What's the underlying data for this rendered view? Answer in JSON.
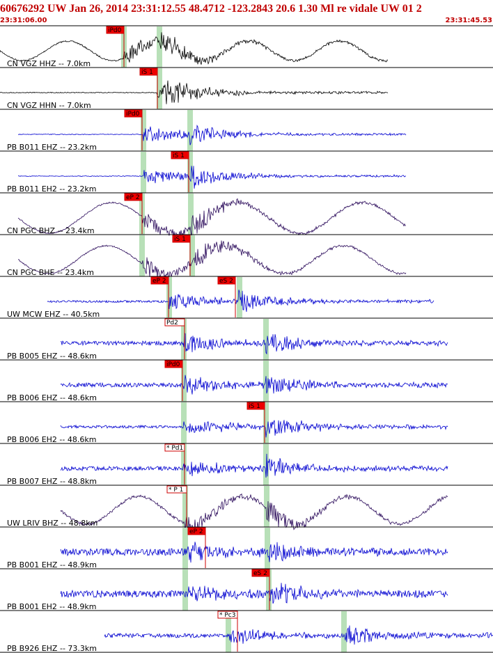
{
  "header": {
    "title": "60676292 UW Jan 26, 2014 23:31:12.55   48.4712 -123.2843 20.6 1.30 Ml re vidale UW 01   2",
    "start_time": "23:31:06.00",
    "end_time": "23:31:45.53"
  },
  "traces": [
    {
      "label": "CN VGZ HHZ -- 7.0km",
      "picks": [
        {
          "label": "iPd0"
        }
      ]
    },
    {
      "label": "CN VGZ HHN -- 7.0km",
      "picks": [
        {
          "label": "iS 1"
        }
      ]
    },
    {
      "label": "PB B011 EHZ -- 23.2km",
      "picks": [
        {
          "label": "iPd0"
        }
      ]
    },
    {
      "label": "PB B011 EH2 -- 23.2km",
      "picks": [
        {
          "label": "iS 1"
        }
      ]
    },
    {
      "label": "CN PGC BHZ -- 23.4km",
      "picks": [
        {
          "label": "eP 2"
        }
      ]
    },
    {
      "label": "CN PGC BHE -- 23.4km",
      "picks": [
        {
          "label": "iS 1"
        }
      ]
    },
    {
      "label": "UW MCW EHZ -- 40.5km",
      "picks": [
        {
          "label": "eP 2"
        },
        {
          "label": "eS 2"
        }
      ]
    },
    {
      "label": "PB B005 EHZ -- 48.6km",
      "picks": [
        {
          "label": "Pd2"
        }
      ]
    },
    {
      "label": "PB B006 EHZ -- 48.6km",
      "picks": [
        {
          "label": "iPd0"
        }
      ]
    },
    {
      "label": "PB B006 EH2 -- 48.6km",
      "picks": [
        {
          "label": "iS 1"
        }
      ]
    },
    {
      "label": "PB B007 EHZ -- 48.8km",
      "picks": [
        {
          "label": "* Pd1"
        }
      ]
    },
    {
      "label": "UW LRIV BHZ -- 48.8km",
      "picks": [
        {
          "label": "* P 1"
        }
      ]
    },
    {
      "label": "PB B001 EHZ -- 48.9km",
      "picks": [
        {
          "label": "eP 2"
        }
      ]
    },
    {
      "label": "PB B001 EH2 -- 48.9km",
      "picks": [
        {
          "label": "eS 2"
        }
      ]
    },
    {
      "label": "PB B926 EHZ -- 73.3km",
      "picks": [
        {
          "label": "* Pc3"
        }
      ]
    }
  ]
}
